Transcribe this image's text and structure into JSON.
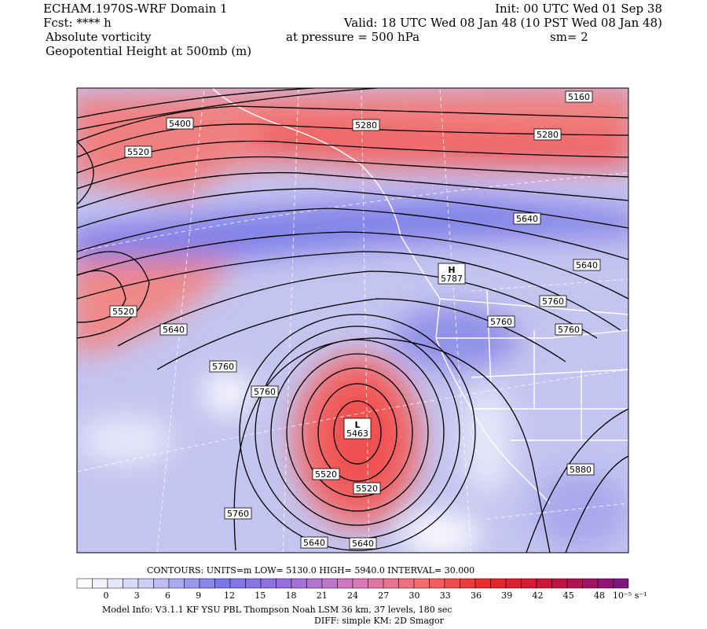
{
  "header": {
    "title": "ECHAM.1970S-WRF Domain 1",
    "init": "Init: 00 UTC Wed 01 Sep 38",
    "forecast": "Fcst: **** h",
    "valid": "Valid: 18 UTC Wed 08 Jan 48 (10 PST Wed 08 Jan 48)",
    "field1": "Absolute vorticity",
    "pressure": "at pressure =  500 hPa",
    "smoothing": "sm= 2",
    "field2": "Geopotential Height at 500mb (m)"
  },
  "map": {
    "contour_labels": [
      "5160",
      "5400",
      "5280",
      "5280",
      "5520",
      "5640",
      "5640",
      "5760",
      "5520",
      "5640",
      "5760",
      "5760",
      "5760",
      "5760",
      "5520",
      "5520",
      "5880",
      "5760",
      "5640",
      "5640"
    ],
    "extrema": [
      {
        "symbol": "H",
        "value": "5787"
      },
      {
        "symbol": "L",
        "value": "5463"
      }
    ]
  },
  "footer": {
    "contours": "CONTOURS:  UNITS=m  LOW=  5130.0   HIGH=  5940.0   INTERVAL=  30.000",
    "colorbar_labels": [
      0,
      3,
      6,
      9,
      12,
      15,
      18,
      21,
      24,
      27,
      30,
      33,
      36,
      39,
      42,
      45,
      48
    ],
    "colorbar_units": "10⁻⁵ s⁻¹",
    "model_info": "Model Info: V3.1.1   KF   YSU PBL  Thompson   Noah LSM  36 km,   37 levels,  180 sec",
    "diff": "DIFF: simple KM: 2D Smagor"
  }
}
